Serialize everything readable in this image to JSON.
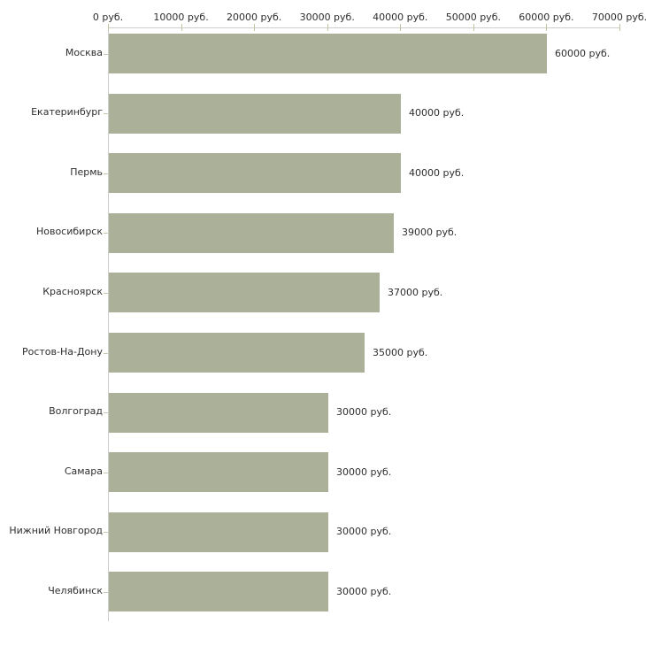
{
  "chart_data": {
    "type": "bar",
    "orientation": "horizontal",
    "title": "",
    "xlabel": "",
    "ylabel": "",
    "unit": "руб.",
    "categories": [
      "Москва",
      "Екатеринбург",
      "Пермь",
      "Новосибирск",
      "Красноярск",
      "Ростов-На-Дону",
      "Волгоград",
      "Самара",
      "Нижний Новгород",
      "Челябинск"
    ],
    "values": [
      60000,
      40000,
      40000,
      39000,
      37000,
      35000,
      30000,
      30000,
      30000,
      30000
    ],
    "value_labels": [
      "60000 руб.",
      "40000 руб.",
      "40000 руб.",
      "39000 руб.",
      "37000 руб.",
      "35000 руб.",
      "30000 руб.",
      "30000 руб.",
      "30000 руб.",
      "30000 руб."
    ],
    "x_ticks": [
      0,
      10000,
      20000,
      30000,
      40000,
      50000,
      60000,
      70000
    ],
    "x_tick_labels": [
      "0 руб.",
      "10000 руб.",
      "20000 руб.",
      "30000 руб.",
      "40000 руб.",
      "50000 руб.",
      "60000 руб.",
      "70000 руб."
    ],
    "xlim": [
      0,
      70000
    ],
    "grid": false,
    "legend": null,
    "bar_color": "#abb199",
    "axis_color": "#cdcdcd",
    "tick_color": "#c3c5a2",
    "text_color": "#2e2e2e"
  }
}
